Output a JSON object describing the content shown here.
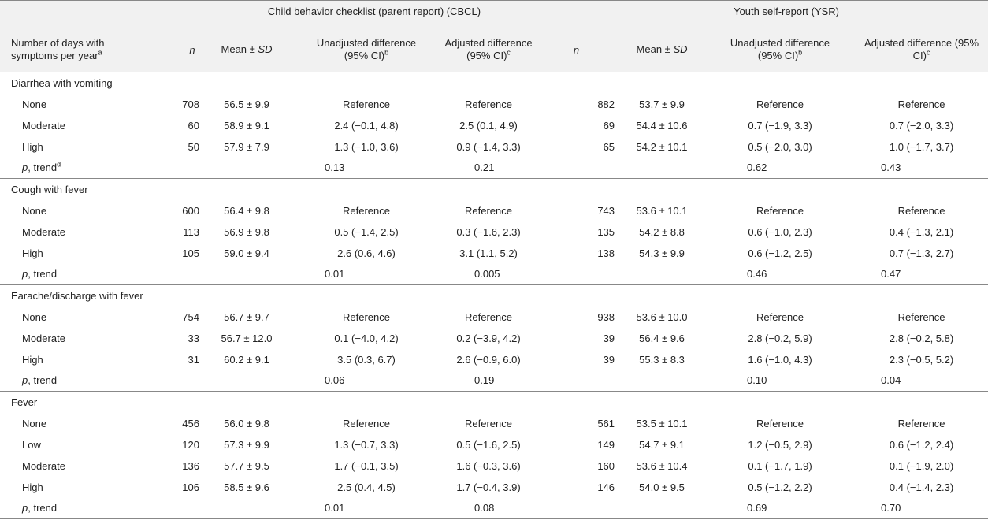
{
  "header": {
    "groups": [
      "Child behavior checklist (parent report) (CBCL)",
      "Youth self-report (YSR)"
    ],
    "columns": [
      [
        {
          "text": "Number of days with symptoms per year"
        },
        {
          "sup": "a"
        }
      ],
      [
        {
          "italic": "n"
        }
      ],
      [
        {
          "text": "Mean ± "
        },
        {
          "italic": "SD"
        }
      ],
      [
        {
          "text": "Unadjusted difference (95% CI)"
        },
        {
          "sup": "b"
        }
      ],
      [
        {
          "text": "Adjusted difference (95% CI)"
        },
        {
          "sup": "c"
        }
      ],
      [
        {
          "italic": "n"
        }
      ],
      [
        {
          "text": "Mean ± "
        },
        {
          "italic": "SD"
        }
      ],
      [
        {
          "text": "Unadjusted difference (95% CI)"
        },
        {
          "sup": "b"
        }
      ],
      [
        {
          "text": "Adjusted difference (95% CI)"
        },
        {
          "sup": "c"
        }
      ]
    ]
  },
  "sections": [
    {
      "title": "Diarrhea with vomiting",
      "rows": [
        {
          "label": "None",
          "cells": [
            708,
            "56.5 ± 9.9",
            "Reference",
            "Reference",
            882,
            "53.7 ± 9.9",
            "Reference",
            "Reference"
          ]
        },
        {
          "label": "Moderate",
          "cells": [
            60,
            "58.9 ± 9.1",
            "2.4 (−0.1, 4.8)",
            "2.5 (0.1, 4.9)",
            69,
            "54.4 ± 10.6",
            "0.7 (−1.9, 3.3)",
            "0.7 (−2.0, 3.3)"
          ]
        },
        {
          "label": "High",
          "cells": [
            50,
            "57.9 ± 7.9",
            "1.3 (−1.0, 3.6)",
            "0.9 (−1.4, 3.3)",
            65,
            "54.2 ± 10.1",
            "0.5 (−2.0, 3.0)",
            "1.0 (−1.7, 3.7)"
          ]
        },
        {
          "label": [
            {
              "italic": "p"
            },
            {
              "text": ", trend"
            },
            {
              "sup": "d"
            }
          ],
          "cells": [
            null,
            null,
            "0.13",
            "0.21",
            null,
            null,
            "0.62",
            "0.43"
          ]
        }
      ]
    },
    {
      "title": "Cough with fever",
      "rows": [
        {
          "label": "None",
          "cells": [
            600,
            "56.4 ± 9.8",
            "Reference",
            "Reference",
            743,
            "53.6 ± 10.1",
            "Reference",
            "Reference"
          ]
        },
        {
          "label": "Moderate",
          "cells": [
            113,
            "56.9 ± 9.8",
            "0.5 (−1.4, 2.5)",
            "0.3 (−1.6, 2.3)",
            135,
            "54.2 ± 8.8",
            "0.6 (−1.0, 2.3)",
            "0.4 (−1.3, 2.1)"
          ]
        },
        {
          "label": "High",
          "cells": [
            105,
            "59.0 ± 9.4",
            "2.6 (0.6, 4.6)",
            "3.1 (1.1, 5.2)",
            138,
            "54.3 ± 9.9",
            "0.6 (−1.2, 2.5)",
            "0.7 (−1.3, 2.7)"
          ]
        },
        {
          "label": [
            {
              "italic": "p"
            },
            {
              "text": ", trend"
            }
          ],
          "cells": [
            null,
            null,
            "0.01",
            "0.005",
            null,
            null,
            "0.46",
            "0.47"
          ]
        }
      ]
    },
    {
      "title": "Earache/discharge with fever",
      "rows": [
        {
          "label": "None",
          "cells": [
            754,
            "56.7 ± 9.7",
            "Reference",
            "Reference",
            938,
            "53.6 ± 10.0",
            "Reference",
            "Reference"
          ]
        },
        {
          "label": "Moderate",
          "cells": [
            33,
            "56.7 ± 12.0",
            "0.1 (−4.0, 4.2)",
            "0.2 (−3.9, 4.2)",
            39,
            "56.4 ± 9.6",
            "2.8 (−0.2, 5.9)",
            "2.8 (−0.2, 5.8)"
          ]
        },
        {
          "label": "High",
          "cells": [
            31,
            "60.2 ± 9.1",
            "3.5 (0.3, 6.7)",
            "2.6 (−0.9, 6.0)",
            39,
            "55.3 ± 8.3",
            "1.6 (−1.0, 4.3)",
            "2.3 (−0.5, 5.2)"
          ]
        },
        {
          "label": [
            {
              "italic": "p"
            },
            {
              "text": ", trend"
            }
          ],
          "cells": [
            null,
            null,
            "0.06",
            "0.19",
            null,
            null,
            "0.10",
            "0.04"
          ]
        }
      ]
    },
    {
      "title": "Fever",
      "rows": [
        {
          "label": "None",
          "cells": [
            456,
            "56.0 ± 9.8",
            "Reference",
            "Reference",
            561,
            "53.5 ± 10.1",
            "Reference",
            "Reference"
          ]
        },
        {
          "label": "Low",
          "cells": [
            120,
            "57.3 ± 9.9",
            "1.3 (−0.7, 3.3)",
            "0.5 (−1.6, 2.5)",
            149,
            "54.7 ± 9.1",
            "1.2 (−0.5, 2.9)",
            "0.6 (−1.2, 2.4)"
          ]
        },
        {
          "label": "Moderate",
          "cells": [
            136,
            "57.7 ± 9.5",
            "1.7 (−0.1, 3.5)",
            "1.6 (−0.3, 3.6)",
            160,
            "53.6 ± 10.4",
            "0.1 (−1.7, 1.9)",
            "0.1 (−1.9, 2.0)"
          ]
        },
        {
          "label": "High",
          "cells": [
            106,
            "58.5 ± 9.6",
            "2.5 (0.4, 4.5)",
            "1.7 (−0.4, 3.9)",
            146,
            "54.0 ± 9.5",
            "0.5 (−1.2, 2.2)",
            "0.4 (−1.4, 2.3)"
          ]
        },
        {
          "label": [
            {
              "italic": "p"
            },
            {
              "text": ", trend"
            }
          ],
          "cells": [
            null,
            null,
            "0.01",
            "0.08",
            null,
            null,
            "0.69",
            "0.70"
          ]
        }
      ]
    }
  ]
}
